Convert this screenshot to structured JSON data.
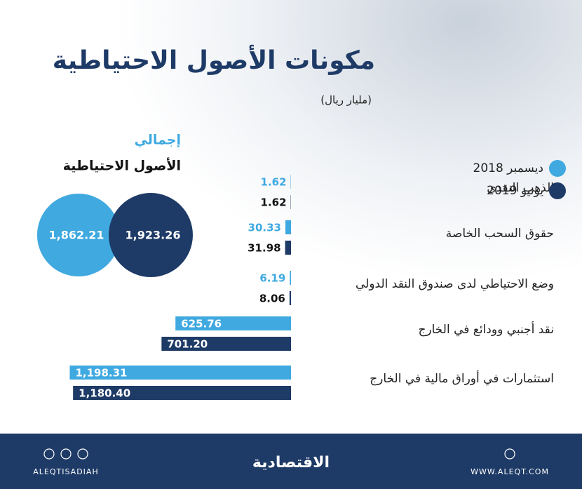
{
  "chart_data": {
    "type": "bar",
    "orientation": "horizontal",
    "title": "مكونات الأصول الاحتياطية",
    "subtitle": "(مليار ريال)",
    "categories": [
      "الذهب النقدي",
      "حقوق السحب الخاصة",
      "وضع الاحتياطي لدى صندوق النقد الدولي",
      "نقد أجنبي وودائع في الخارج",
      "استثمارات في أوراق مالية في الخارج"
    ],
    "series": [
      {
        "name": "ديسمبر 2018",
        "color": "#3fa9e0",
        "values": [
          1.62,
          30.33,
          6.19,
          625.76,
          1198.31
        ],
        "value_labels": [
          "1.62",
          "30.33",
          "6.19",
          "625.76",
          "1,198.31"
        ]
      },
      {
        "name": "يونيو 2019",
        "color": "#1e3a66",
        "values": [
          1.62,
          31.98,
          8.06,
          701.2,
          1180.4
        ],
        "value_labels": [
          "1.62",
          "31.98",
          "8.06",
          "701.20",
          "1,180.40"
        ]
      }
    ],
    "xlim": [
      0,
      1200
    ],
    "totals": {
      "title": "إجمالي",
      "subtitle": "الأصول الاحتياطية",
      "values": [
        1862.21,
        1923.26
      ],
      "value_labels": [
        "1,862.21",
        "1,923.26"
      ]
    }
  },
  "footer": {
    "social": "ALEQTISADIAH",
    "logo": "الاقتصادية",
    "website": "WWW.ALEQT.COM"
  }
}
